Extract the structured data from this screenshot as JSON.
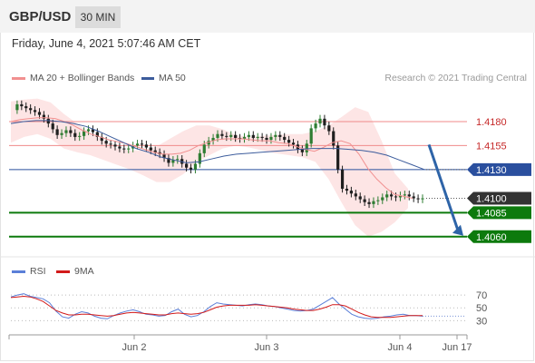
{
  "header": {
    "pair": "GBP/USD",
    "timeframe": "30 MIN"
  },
  "datetime": "Friday, June 4, 2021 5:07:46 AM CET",
  "legend": {
    "ma20_label": "MA 20 + Bollinger Bands",
    "ma50_label": "MA 50",
    "credit": "Research © 2021 Trading Central",
    "rsi_label": "RSI",
    "ma9_label": "9MA"
  },
  "colors": {
    "band_fill": "#fcd4d4",
    "ma20": "#f19090",
    "ma50": "#3c5c9c",
    "candle_up": "#2e7d32",
    "candle_down": "#1f1f1f",
    "resistance": "#f08a8a",
    "pivot": "#2a4f9e",
    "support": "#0d7a0d",
    "last_price": "#333333",
    "arrow": "#2e64a8",
    "rsi": "#5b7fd8",
    "rsi_ma": "#d21a1a"
  },
  "chart_data": [
    {
      "type": "candlestick",
      "title": "",
      "ylim": [
        1.4039,
        1.4215
      ],
      "x_ticks": [
        "Jun 2",
        "Jun 3",
        "Jun 4",
        "Jun 17"
      ],
      "series": [
        {
          "name": "MA 20 + Bollinger Bands"
        },
        {
          "name": "MA 50"
        }
      ],
      "levels": [
        {
          "value": 1.418,
          "label": "1.4180",
          "kind": "resistance"
        },
        {
          "value": 1.4155,
          "label": "1.4155",
          "kind": "resistance"
        },
        {
          "value": 1.413,
          "label": "1.4130",
          "kind": "pivot"
        },
        {
          "value": 1.41,
          "label": "1.4100",
          "kind": "last"
        },
        {
          "value": 1.4085,
          "label": "1.4085",
          "kind": "support"
        },
        {
          "value": 1.406,
          "label": "1.4060",
          "kind": "support"
        }
      ],
      "price_path": [
        1.4192,
        1.4198,
        1.4196,
        1.4194,
        1.4192,
        1.419,
        1.4187,
        1.4183,
        1.4178,
        1.4172,
        1.4166,
        1.4168,
        1.4171,
        1.4168,
        1.4164,
        1.4165,
        1.417,
        1.4172,
        1.4169,
        1.4164,
        1.416,
        1.4157,
        1.4156,
        1.4154,
        1.4152,
        1.4151,
        1.4152,
        1.4155,
        1.4157,
        1.4156,
        1.4153,
        1.415,
        1.4148,
        1.4146,
        1.4142,
        1.4137,
        1.414,
        1.4141,
        1.4136,
        1.4132,
        1.413,
        1.4136,
        1.4147,
        1.4156,
        1.416,
        1.4163,
        1.4167,
        1.4165,
        1.4164,
        1.4166,
        1.4163,
        1.4162,
        1.4164,
        1.4166,
        1.4163,
        1.4164,
        1.4163,
        1.4161,
        1.4164,
        1.4166,
        1.4164,
        1.4161,
        1.4158,
        1.4156,
        1.4151,
        1.4148,
        1.4157,
        1.4173,
        1.4178,
        1.4183,
        1.4176,
        1.417,
        1.4155,
        1.413,
        1.411,
        1.4108,
        1.4105,
        1.4102,
        1.4099,
        1.4096,
        1.4094,
        1.4097,
        1.4098,
        1.4101,
        1.4104,
        1.4102,
        1.4101,
        1.4103,
        1.4104,
        1.4102,
        1.41,
        1.4099,
        1.41
      ],
      "ma20_path": [
        1.418,
        1.4182,
        1.4183,
        1.4184,
        1.4184,
        1.4183,
        1.418,
        1.4176,
        1.4171,
        1.4167,
        1.4164,
        1.4161,
        1.4159,
        1.4157,
        1.4154,
        1.4151,
        1.4148,
        1.4146,
        1.4146,
        1.4147,
        1.415,
        1.4155,
        1.4158,
        1.4161,
        1.4162,
        1.4162,
        1.4162,
        1.4161,
        1.416,
        1.416,
        1.4158,
        1.4157,
        1.4154,
        1.4151,
        1.4149,
        1.4153,
        1.4158,
        1.416,
        1.4157,
        1.4146,
        1.4131,
        1.412,
        1.4111,
        1.4104,
        1.4102,
        1.41
      ],
      "ma50_path": [
        1.4178,
        1.418,
        1.4181,
        1.4181,
        1.418,
        1.4178,
        1.4175,
        1.417,
        1.4164,
        1.4158,
        1.4152,
        1.4148,
        1.4143,
        1.414,
        1.4137,
        1.4138,
        1.4141,
        1.4144,
        1.4146,
        1.4147,
        1.4148,
        1.4149,
        1.415,
        1.4151,
        1.4152,
        1.4152,
        1.4152,
        1.4151,
        1.415,
        1.4148,
        1.4145,
        1.414,
        1.4135,
        1.413
      ],
      "bb_upper_path": [
        1.4201,
        1.4203,
        1.4204,
        1.42,
        1.4188,
        1.4178,
        1.4168,
        1.416,
        1.4152,
        1.415,
        1.415,
        1.4154,
        1.4162,
        1.417,
        1.4176,
        1.4176,
        1.4172,
        1.4166,
        1.4164,
        1.4165,
        1.4166,
        1.4167,
        1.4167,
        1.417,
        1.4176,
        1.4185,
        1.4195,
        1.419,
        1.416,
        1.4126,
        1.411
      ],
      "bb_lower_path": [
        1.4158,
        1.4164,
        1.4167,
        1.4162,
        1.4152,
        1.4148,
        1.4145,
        1.414,
        1.4135,
        1.413,
        1.4124,
        1.4117,
        1.4117,
        1.4125,
        1.4137,
        1.4145,
        1.4152,
        1.4155,
        1.4153,
        1.415,
        1.4147,
        1.4145,
        1.4143,
        1.4138,
        1.412,
        1.4095,
        1.4072,
        1.406,
        1.4065,
        1.4075,
        1.409
      ]
    },
    {
      "type": "line",
      "title": "",
      "y_ticks": [
        70,
        50,
        30
      ],
      "ylim": [
        15,
        80
      ],
      "series": [
        {
          "name": "RSI",
          "values": [
            67,
            70,
            72,
            68,
            66,
            64,
            58,
            45,
            36,
            34,
            40,
            44,
            42,
            37,
            34,
            33,
            38,
            42,
            45,
            47,
            44,
            40,
            39,
            37,
            38,
            44,
            48,
            40,
            36,
            38,
            44,
            52,
            58,
            56,
            55,
            54,
            53,
            55,
            56,
            55,
            53,
            52,
            50,
            48,
            46,
            45,
            46,
            48,
            54,
            60,
            66,
            56,
            48,
            40,
            36,
            34,
            33,
            34,
            36,
            37,
            39,
            40,
            38,
            38,
            37
          ]
        },
        {
          "name": "9MA",
          "values": [
            66,
            67,
            68,
            67,
            64,
            60,
            53,
            46,
            42,
            39,
            39,
            40,
            40,
            39,
            38,
            37,
            38,
            40,
            42,
            43,
            42,
            41,
            40,
            39,
            39,
            41,
            42,
            41,
            40,
            41,
            43,
            47,
            51,
            53,
            54,
            54,
            54,
            54,
            55,
            54,
            53,
            52,
            51,
            50,
            48,
            47,
            46,
            46,
            48,
            51,
            55,
            55,
            53,
            48,
            43,
            39,
            36,
            35,
            35,
            35,
            36,
            37,
            38,
            38,
            38
          ]
        }
      ]
    }
  ]
}
